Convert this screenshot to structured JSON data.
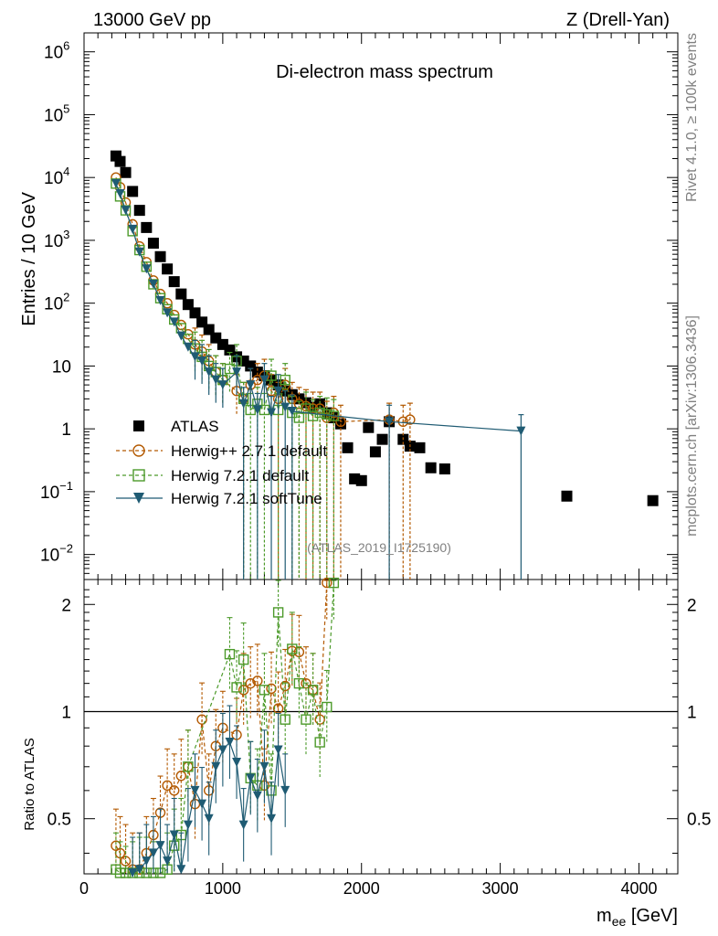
{
  "header": {
    "left": "13000 GeV pp",
    "right": "Z (Drell-Yan)"
  },
  "side": {
    "rivet": "Rivet 4.1.0, ≥ 100k events",
    "mcplots": "mcplots.cern.ch [arXiv:1306.3436]"
  },
  "chart_data": {
    "type": "scatter",
    "title": "Di-electron mass spectrum",
    "analysis_label": "(ATLAS_2019_I1725190)",
    "xlabel": "m_ee [GeV]",
    "xlabel_main": "m",
    "xlabel_sub": "ee",
    "xlabel_unit": " [GeV]",
    "ylabel": "Entries / 10 GeV",
    "ratio_ylabel": "Ratio to ATLAS",
    "xlim": [
      0,
      4280
    ],
    "ylim": [
      0.004,
      2000000
    ],
    "ratio_ylim": [
      0.35,
      2.35
    ],
    "yscale": "log",
    "x_ticks": [
      0,
      1000,
      2000,
      3000,
      4000
    ],
    "x_tick_labels": [
      "0",
      "1000",
      "2000",
      "3000",
      "4000"
    ],
    "y_ticks": [
      {
        "value": 0.01,
        "base": "10",
        "exp": "−2"
      },
      {
        "value": 0.1,
        "base": "10",
        "exp": "−1"
      },
      {
        "value": 1,
        "base": "1",
        "exp": ""
      },
      {
        "value": 10,
        "base": "10",
        "exp": ""
      },
      {
        "value": 100,
        "base": "10",
        "exp": "2"
      },
      {
        "value": 1000,
        "base": "10",
        "exp": "3"
      },
      {
        "value": 10000,
        "base": "10",
        "exp": "4"
      },
      {
        "value": 100000,
        "base": "10",
        "exp": "5"
      },
      {
        "value": 1000000,
        "base": "10",
        "exp": "6"
      }
    ],
    "ratio_ticks": [
      {
        "value": 0.5,
        "label": "0.5"
      },
      {
        "value": 1,
        "label": "1"
      },
      {
        "value": 2,
        "label": "2"
      }
    ],
    "series": [
      {
        "name": "ATLAS",
        "marker": "square",
        "color": "#000000",
        "x": [
          230,
          260,
          300,
          350,
          400,
          450,
          500,
          550,
          600,
          650,
          700,
          750,
          800,
          850,
          900,
          950,
          1000,
          1050,
          1100,
          1150,
          1200,
          1250,
          1300,
          1350,
          1400,
          1450,
          1500,
          1550,
          1600,
          1650,
          1700,
          1750,
          1800,
          1850,
          1900,
          1950,
          2000,
          2050,
          2100,
          2150,
          2200,
          2300,
          2350,
          2420,
          2500,
          2600,
          3480,
          4100
        ],
        "y": [
          22000,
          18000,
          12000,
          6000,
          3000,
          1600,
          900,
          550,
          350,
          220,
          140,
          95,
          70,
          50,
          38,
          28,
          22,
          18,
          14,
          12,
          10,
          8,
          7,
          6,
          5,
          4,
          3.5,
          3,
          2.6,
          2.2,
          2.5,
          1.8,
          1.5,
          1.2,
          0.5,
          0.16,
          0.15,
          1.05,
          0.43,
          0.68,
          1.3,
          0.68,
          0.53,
          0.5,
          0.24,
          0.23,
          0.085,
          0.072
        ],
        "err_low": [],
        "err_high": []
      },
      {
        "name": "Herwig++ 2.7.1 default",
        "marker": "circle-open",
        "color": "#b35900",
        "x": [
          230,
          260,
          300,
          350,
          400,
          450,
          500,
          550,
          600,
          650,
          700,
          750,
          800,
          850,
          900,
          950,
          1000,
          1100,
          1150,
          1200,
          1250,
          1300,
          1350,
          1400,
          1450,
          1500,
          1550,
          1600,
          1650,
          1700,
          1750,
          1800,
          1850,
          2200,
          2300,
          2350
        ],
        "y": [
          10000,
          7000,
          4000,
          1800,
          800,
          450,
          230,
          140,
          100,
          65,
          45,
          32,
          22,
          17,
          12,
          8,
          6,
          4,
          3,
          5,
          6,
          7,
          4,
          3,
          5,
          3,
          2.5,
          2.3,
          2.1,
          2.1,
          1.5,
          1.8,
          1.3,
          1.4,
          1.3,
          1.4
        ],
        "err_low": [],
        "err_high": []
      },
      {
        "name": "Herwig 7.2.1 default",
        "marker": "square-open",
        "color": "#4c9a2a",
        "x": [
          230,
          260,
          300,
          350,
          400,
          450,
          500,
          550,
          600,
          650,
          700,
          750,
          800,
          850,
          900,
          950,
          1000,
          1050,
          1100,
          1150,
          1200,
          1250,
          1300,
          1350,
          1400,
          1450,
          1500,
          1550,
          1600,
          1650,
          1700,
          1750,
          1800
        ],
        "y": [
          8000,
          5000,
          3000,
          1400,
          700,
          380,
          200,
          120,
          80,
          55,
          40,
          27,
          19,
          14,
          10,
          8,
          6,
          9,
          12,
          3,
          2,
          2.5,
          2,
          7,
          2,
          6,
          1.8,
          1.5,
          2.1,
          1.6,
          1.8,
          1.7,
          1.6
        ],
        "err_low": [],
        "err_high": []
      },
      {
        "name": "Herwig 7.2.1 softTune",
        "marker": "triangle-down",
        "color": "#1f5b73",
        "x": [
          230,
          260,
          300,
          350,
          400,
          450,
          500,
          550,
          600,
          650,
          700,
          750,
          800,
          850,
          900,
          950,
          1000,
          1100,
          1150,
          1200,
          1250,
          1300,
          1350,
          1400,
          1450,
          1500,
          2200,
          3150
        ],
        "y": [
          8000,
          5500,
          3000,
          1500,
          650,
          350,
          200,
          110,
          70,
          50,
          30,
          20,
          14,
          12,
          8,
          6,
          5,
          8,
          2.5,
          5,
          2,
          6,
          1.8,
          4,
          2.2,
          1.9,
          1.3,
          0.92
        ],
        "err_low": [],
        "err_high": []
      }
    ],
    "ratio": [
      {
        "name": "Herwig++ 2.7.1 default",
        "x": [
          230,
          260,
          300,
          350,
          400,
          450,
          500,
          550,
          600,
          650,
          700,
          750,
          800,
          850,
          900,
          950,
          1000,
          1100,
          1150,
          1200,
          1250,
          1300,
          1350,
          1400,
          1450,
          1500,
          1550,
          1600,
          1650,
          1700,
          1750
        ],
        "y": [
          0.42,
          0.4,
          0.38,
          0.36,
          0.36,
          0.4,
          0.45,
          0.52,
          0.62,
          0.6,
          0.66,
          0.7,
          0.55,
          0.95,
          0.6,
          0.8,
          0.9,
          0.86,
          1.15,
          1.2,
          1.22,
          0.62,
          1.16,
          1.02,
          1.18,
          1.48,
          1.47,
          1.2,
          1.15,
          0.95,
          2.3
        ]
      },
      {
        "name": "Herwig 7.2.1 default",
        "x": [
          230,
          260,
          300,
          350,
          400,
          450,
          500,
          550,
          600,
          650,
          700,
          750,
          1050,
          1100,
          1150,
          1200,
          1250,
          1300,
          1350,
          1400,
          1450,
          1500,
          1550,
          1600,
          1650,
          1700,
          1750,
          1800
        ],
        "y": [
          0.36,
          0.34,
          0.33,
          0.34,
          0.35,
          0.35,
          0.34,
          0.34,
          0.36,
          0.42,
          0.45,
          0.7,
          1.45,
          1.17,
          1.4,
          0.65,
          0.62,
          1.15,
          0.6,
          1.9,
          0.95,
          1.5,
          1.2,
          0.95,
          1.15,
          0.82,
          1.03,
          2.3
        ]
      },
      {
        "name": "Herwig 7.2.1 softTune",
        "x": [
          350,
          400,
          450,
          500,
          550,
          600,
          650,
          700,
          750,
          800,
          850,
          900,
          950,
          1000,
          1050,
          1100,
          1150,
          1200,
          1250,
          1300,
          1350,
          1400,
          1450
        ],
        "y": [
          0.35,
          0.36,
          0.38,
          0.4,
          0.42,
          0.38,
          0.45,
          0.36,
          0.48,
          0.6,
          0.55,
          0.5,
          0.7,
          0.78,
          0.82,
          0.72,
          0.48,
          0.65,
          0.58,
          0.7,
          0.5,
          0.78,
          0.6
        ]
      }
    ]
  }
}
